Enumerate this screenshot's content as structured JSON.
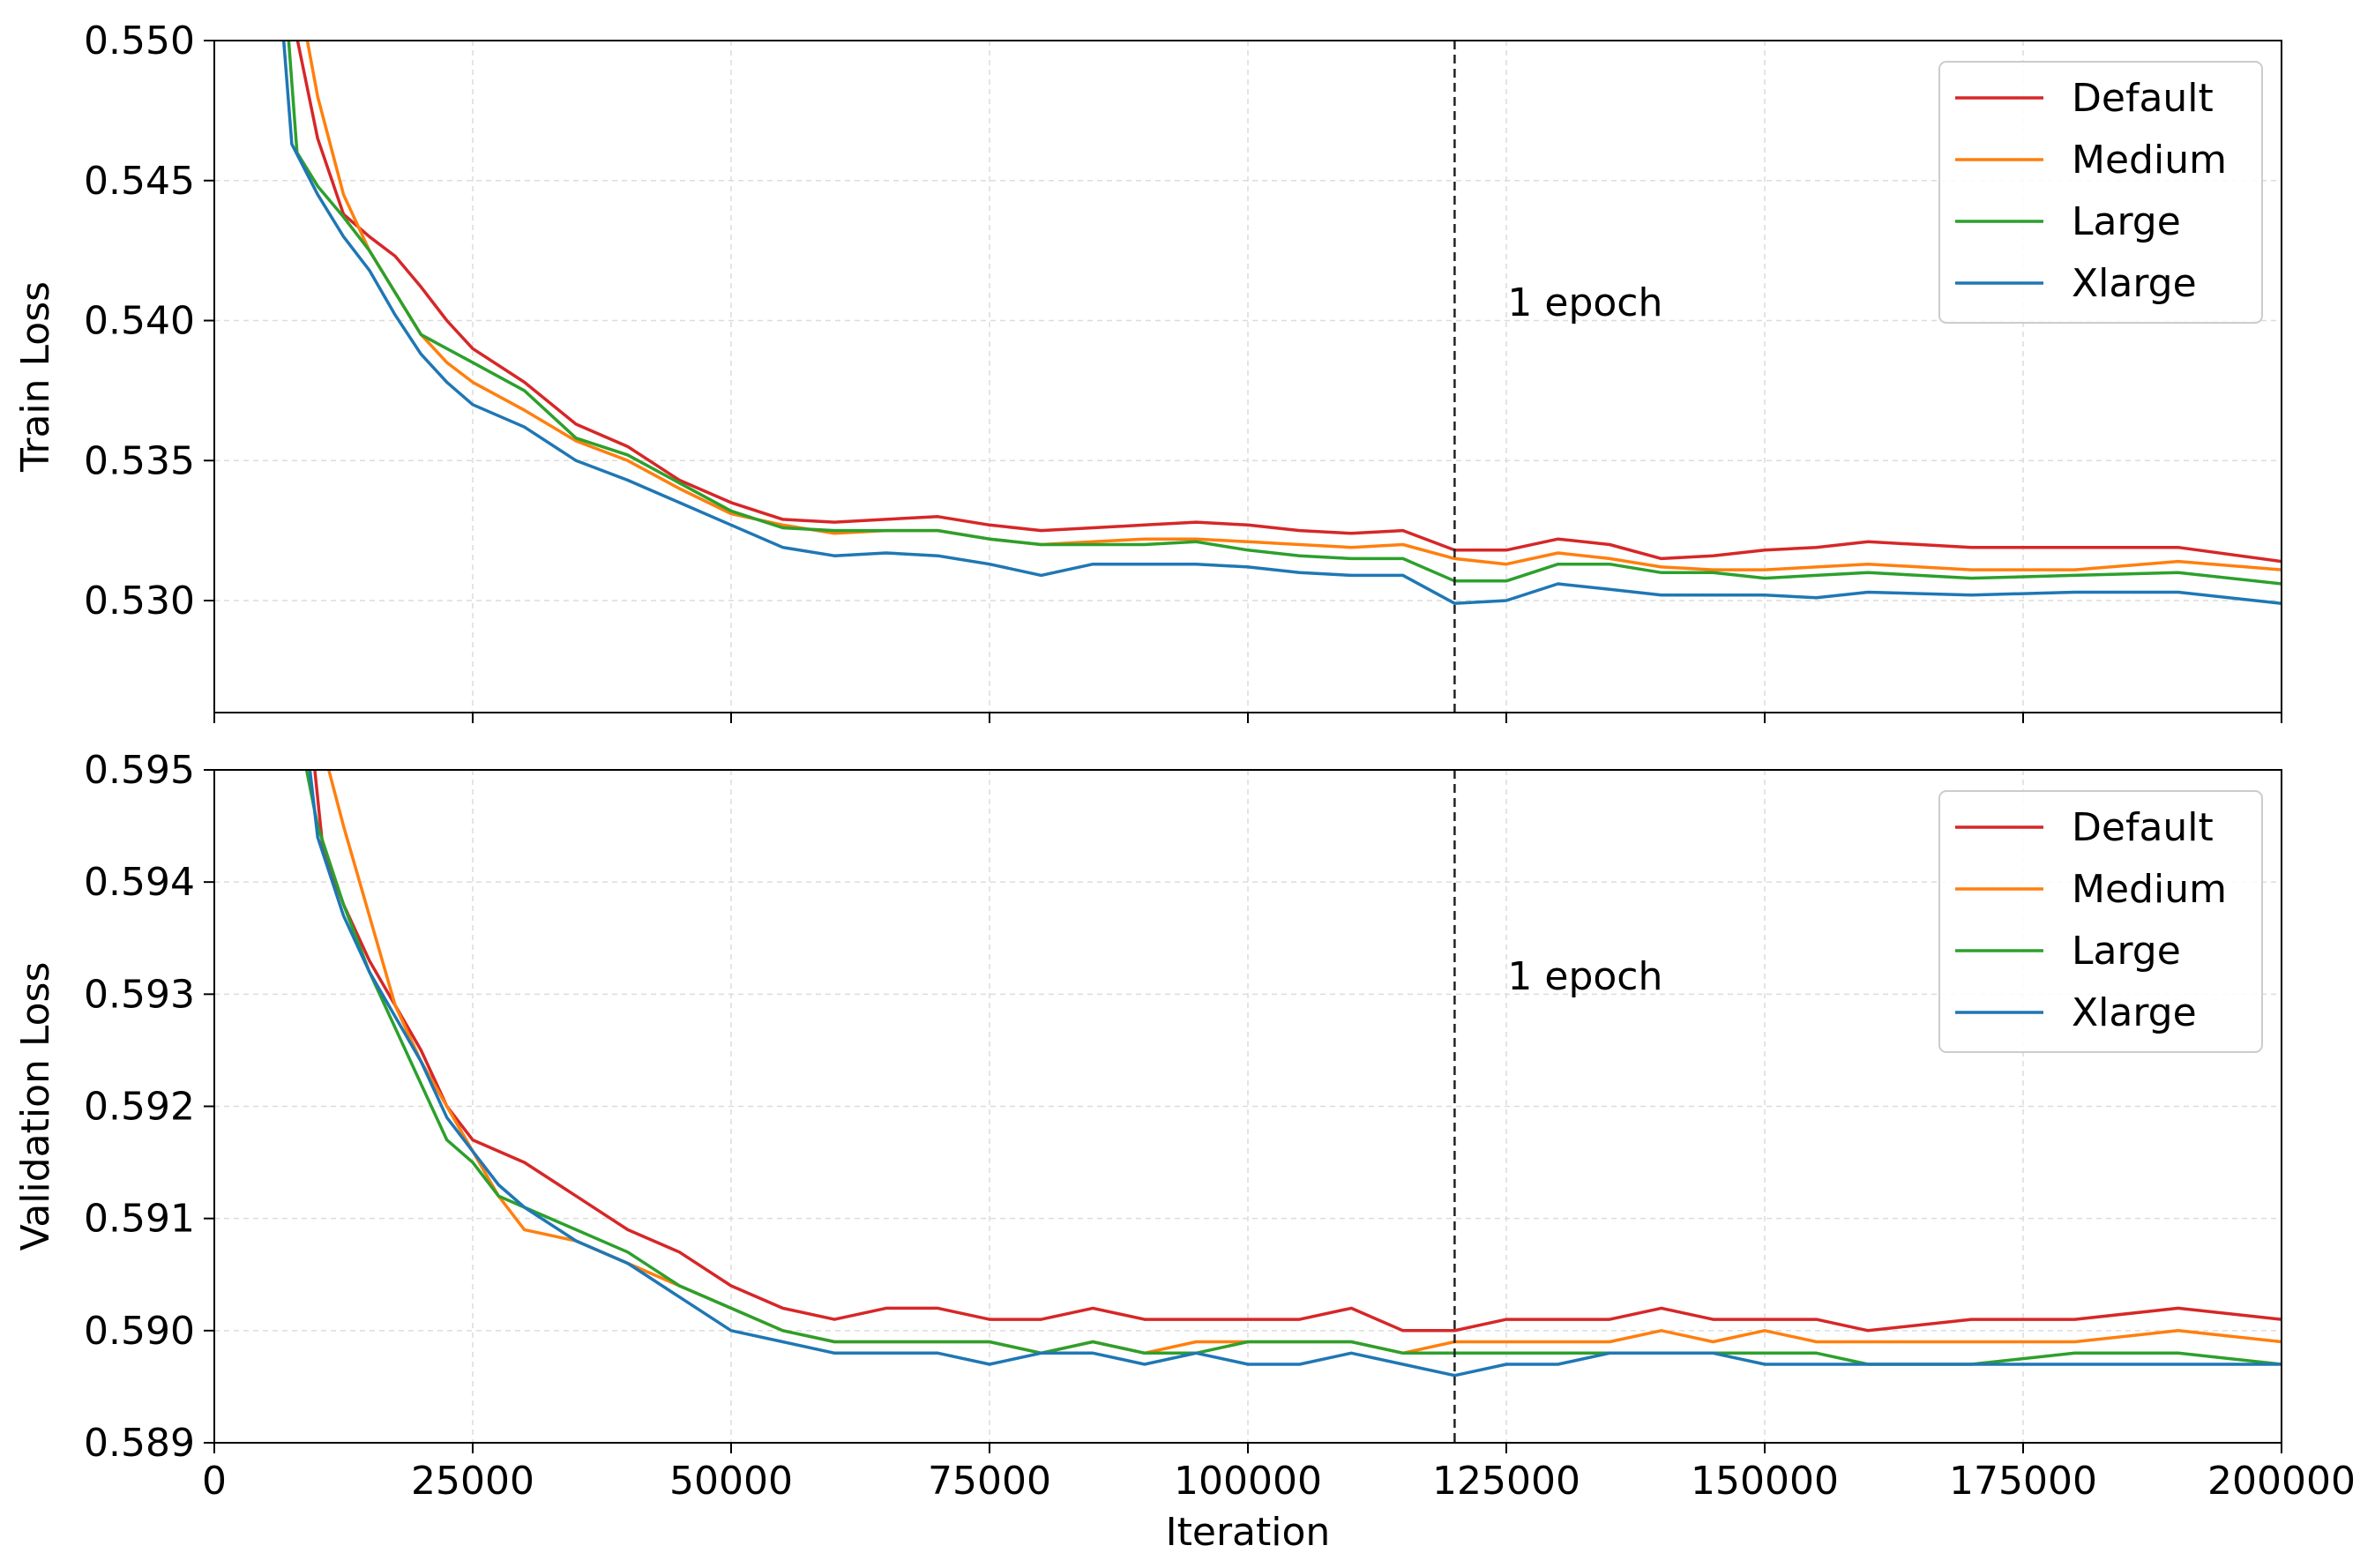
{
  "chart_data": [
    {
      "type": "line",
      "ylabel": "Train Loss",
      "ylim": [
        0.526,
        0.55
      ],
      "yticks": [
        "0.530",
        "0.535",
        "0.540",
        "0.545",
        "0.550"
      ],
      "xlim": [
        0,
        200000
      ],
      "grid": true,
      "legend": "top-right",
      "annotation": {
        "text": "1 epoch",
        "x": 120000
      },
      "series": [
        {
          "name": "Default",
          "color": "#d62728",
          "x": [
            7500,
            10000,
            12500,
            15000,
            17500,
            20000,
            22500,
            25000,
            30000,
            35000,
            40000,
            45000,
            50000,
            55000,
            60000,
            65000,
            70000,
            75000,
            80000,
            85000,
            90000,
            95000,
            100000,
            105000,
            110000,
            115000,
            120000,
            125000,
            130000,
            135000,
            140000,
            145000,
            150000,
            155000,
            160000,
            170000,
            180000,
            190000,
            200000
          ],
          "y": [
            0.551,
            0.5465,
            0.5438,
            0.543,
            0.5423,
            0.5412,
            0.54,
            0.539,
            0.5378,
            0.5363,
            0.5355,
            0.5343,
            0.5335,
            0.5329,
            0.5328,
            0.5329,
            0.533,
            0.5327,
            0.5325,
            0.5326,
            0.5327,
            0.5328,
            0.5327,
            0.5325,
            0.5324,
            0.5325,
            0.5318,
            0.5318,
            0.5322,
            0.532,
            0.5315,
            0.5316,
            0.5318,
            0.5319,
            0.5321,
            0.5319,
            0.5319,
            0.5319,
            0.5314
          ]
        },
        {
          "name": "Medium",
          "color": "#ff7f0e",
          "x": [
            8500,
            10000,
            12500,
            15000,
            17500,
            20000,
            22500,
            25000,
            30000,
            35000,
            40000,
            45000,
            50000,
            55000,
            60000,
            65000,
            70000,
            75000,
            80000,
            85000,
            90000,
            95000,
            100000,
            105000,
            110000,
            115000,
            120000,
            125000,
            130000,
            135000,
            140000,
            145000,
            150000,
            155000,
            160000,
            170000,
            180000,
            190000,
            200000
          ],
          "y": [
            0.551,
            0.548,
            0.5445,
            0.5425,
            0.541,
            0.5395,
            0.5385,
            0.5378,
            0.5368,
            0.5357,
            0.535,
            0.534,
            0.5331,
            0.5327,
            0.5324,
            0.5325,
            0.5325,
            0.5322,
            0.532,
            0.5321,
            0.5322,
            0.5322,
            0.5321,
            0.532,
            0.5319,
            0.532,
            0.5315,
            0.5313,
            0.5317,
            0.5315,
            0.5312,
            0.5311,
            0.5311,
            0.5312,
            0.5313,
            0.5311,
            0.5311,
            0.5314,
            0.5311
          ]
        },
        {
          "name": "Large",
          "color": "#2ca02c",
          "x": [
            7000,
            8000,
            10000,
            12500,
            15000,
            17500,
            20000,
            22500,
            25000,
            30000,
            35000,
            40000,
            45000,
            50000,
            55000,
            60000,
            65000,
            70000,
            75000,
            80000,
            85000,
            90000,
            95000,
            100000,
            105000,
            110000,
            115000,
            120000,
            125000,
            130000,
            135000,
            140000,
            145000,
            150000,
            155000,
            160000,
            170000,
            180000,
            190000,
            200000
          ],
          "y": [
            0.551,
            0.546,
            0.5448,
            0.5437,
            0.5425,
            0.541,
            0.5395,
            0.539,
            0.5385,
            0.5375,
            0.5358,
            0.5352,
            0.5342,
            0.5332,
            0.5326,
            0.5325,
            0.5325,
            0.5325,
            0.5322,
            0.532,
            0.532,
            0.532,
            0.5321,
            0.5318,
            0.5316,
            0.5315,
            0.5315,
            0.5307,
            0.5307,
            0.5313,
            0.5313,
            0.531,
            0.531,
            0.5308,
            0.5309,
            0.531,
            0.5308,
            0.5309,
            0.531,
            0.5306
          ]
        },
        {
          "name": "Xlarge",
          "color": "#1f77b4",
          "x": [
            6500,
            7500,
            10000,
            12500,
            15000,
            17500,
            20000,
            22500,
            25000,
            30000,
            35000,
            40000,
            45000,
            50000,
            55000,
            60000,
            65000,
            70000,
            75000,
            80000,
            85000,
            90000,
            95000,
            100000,
            105000,
            110000,
            115000,
            120000,
            125000,
            130000,
            135000,
            140000,
            145000,
            150000,
            155000,
            160000,
            170000,
            180000,
            190000,
            200000
          ],
          "y": [
            0.551,
            0.5463,
            0.5445,
            0.543,
            0.5418,
            0.5402,
            0.5388,
            0.5378,
            0.537,
            0.5362,
            0.535,
            0.5343,
            0.5335,
            0.5327,
            0.5319,
            0.5316,
            0.5317,
            0.5316,
            0.5313,
            0.5309,
            0.5313,
            0.5313,
            0.5313,
            0.5312,
            0.531,
            0.5309,
            0.5309,
            0.5299,
            0.53,
            0.5306,
            0.5304,
            0.5302,
            0.5302,
            0.5302,
            0.5301,
            0.5303,
            0.5302,
            0.5303,
            0.5303,
            0.5299
          ]
        }
      ]
    },
    {
      "type": "line",
      "ylabel": "Validation Loss",
      "xlabel": "Iteration",
      "ylim": [
        0.589,
        0.595
      ],
      "yticks": [
        "0.589",
        "0.590",
        "0.591",
        "0.592",
        "0.593",
        "0.594",
        "0.595"
      ],
      "xlim": [
        0,
        200000
      ],
      "xticks": [
        "0",
        "25000",
        "50000",
        "75000",
        "100000",
        "125000",
        "150000",
        "175000",
        "200000"
      ],
      "grid": true,
      "legend": "top-right",
      "annotation": {
        "text": "1 epoch",
        "x": 120000
      },
      "series": [
        {
          "name": "Default",
          "color": "#d62728",
          "x": [
            9500,
            10500,
            12500,
            15000,
            17500,
            20000,
            22500,
            25000,
            27500,
            30000,
            35000,
            40000,
            45000,
            50000,
            55000,
            60000,
            65000,
            70000,
            75000,
            80000,
            85000,
            90000,
            95000,
            100000,
            105000,
            110000,
            115000,
            120000,
            125000,
            130000,
            135000,
            140000,
            145000,
            150000,
            155000,
            160000,
            170000,
            180000,
            190000,
            200000
          ],
          "y": [
            0.5952,
            0.5943,
            0.5938,
            0.5933,
            0.5929,
            0.5925,
            0.592,
            0.5917,
            0.5916,
            0.5915,
            0.5912,
            0.5909,
            0.5907,
            0.5904,
            0.5902,
            0.5901,
            0.5902,
            0.5902,
            0.5901,
            0.5901,
            0.5902,
            0.5901,
            0.5901,
            0.5901,
            0.5901,
            0.5902,
            0.59,
            0.59,
            0.5901,
            0.5901,
            0.5901,
            0.5902,
            0.5901,
            0.5901,
            0.5901,
            0.59,
            0.5901,
            0.5901,
            0.5902,
            0.5901
          ]
        },
        {
          "name": "Medium",
          "color": "#ff7f0e",
          "x": [
            10500,
            12500,
            15000,
            17500,
            20000,
            22500,
            25000,
            27500,
            30000,
            35000,
            40000,
            45000,
            50000,
            55000,
            60000,
            65000,
            70000,
            75000,
            80000,
            85000,
            90000,
            95000,
            100000,
            105000,
            110000,
            115000,
            120000,
            125000,
            130000,
            135000,
            140000,
            145000,
            150000,
            155000,
            160000,
            170000,
            180000,
            190000,
            200000
          ],
          "y": [
            0.5952,
            0.5945,
            0.5937,
            0.5929,
            0.5924,
            0.592,
            0.5916,
            0.5912,
            0.5909,
            0.5908,
            0.5906,
            0.5904,
            0.5902,
            0.59,
            0.5899,
            0.5899,
            0.5899,
            0.5899,
            0.5898,
            0.5899,
            0.5898,
            0.5899,
            0.5899,
            0.5899,
            0.5899,
            0.5898,
            0.5899,
            0.5899,
            0.5899,
            0.5899,
            0.59,
            0.5899,
            0.59,
            0.5899,
            0.5899,
            0.5899,
            0.5899,
            0.59,
            0.5899
          ]
        },
        {
          "name": "Large",
          "color": "#2ca02c",
          "x": [
            8500,
            10000,
            12500,
            15000,
            17500,
            20000,
            22500,
            25000,
            27500,
            30000,
            35000,
            40000,
            45000,
            50000,
            55000,
            60000,
            65000,
            70000,
            75000,
            80000,
            85000,
            90000,
            95000,
            100000,
            105000,
            110000,
            115000,
            120000,
            125000,
            130000,
            135000,
            140000,
            145000,
            150000,
            155000,
            160000,
            170000,
            180000,
            190000,
            200000
          ],
          "y": [
            0.5952,
            0.5945,
            0.5938,
            0.5932,
            0.5927,
            0.5922,
            0.5917,
            0.5915,
            0.5912,
            0.5911,
            0.5909,
            0.5907,
            0.5904,
            0.5902,
            0.59,
            0.5899,
            0.5899,
            0.5899,
            0.5899,
            0.5898,
            0.5899,
            0.5898,
            0.5898,
            0.5899,
            0.5899,
            0.5899,
            0.5898,
            0.5898,
            0.5898,
            0.5898,
            0.5898,
            0.5898,
            0.5898,
            0.5898,
            0.5898,
            0.5897,
            0.5897,
            0.5898,
            0.5898,
            0.5897
          ]
        },
        {
          "name": "Xlarge",
          "color": "#1f77b4",
          "x": [
            9000,
            10000,
            12500,
            15000,
            17500,
            20000,
            22500,
            25000,
            27500,
            30000,
            35000,
            40000,
            45000,
            50000,
            55000,
            60000,
            65000,
            70000,
            75000,
            80000,
            85000,
            90000,
            95000,
            100000,
            105000,
            110000,
            115000,
            120000,
            125000,
            130000,
            135000,
            140000,
            145000,
            150000,
            155000,
            160000,
            170000,
            180000,
            190000,
            200000
          ],
          "y": [
            0.5952,
            0.5944,
            0.5937,
            0.5932,
            0.5928,
            0.5924,
            0.5919,
            0.5916,
            0.5913,
            0.5911,
            0.5908,
            0.5906,
            0.5903,
            0.59,
            0.5899,
            0.5898,
            0.5898,
            0.5898,
            0.5897,
            0.5898,
            0.5898,
            0.5897,
            0.5898,
            0.5897,
            0.5897,
            0.5898,
            0.5897,
            0.5896,
            0.5897,
            0.5897,
            0.5898,
            0.5898,
            0.5898,
            0.5897,
            0.5897,
            0.5897,
            0.5897,
            0.5897,
            0.5897,
            0.5897
          ]
        }
      ]
    }
  ]
}
